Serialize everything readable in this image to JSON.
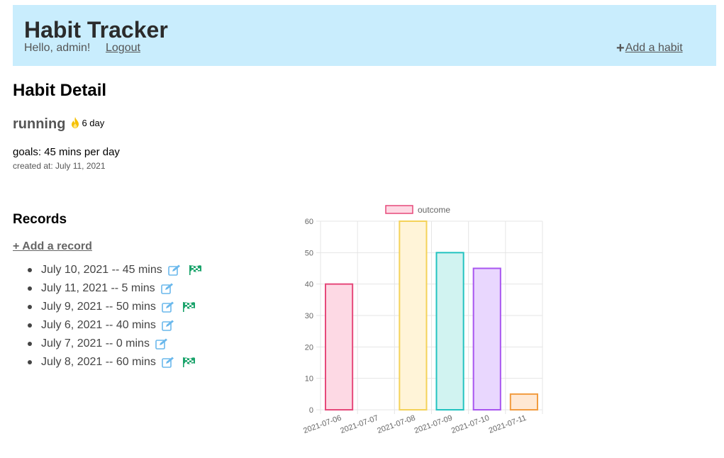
{
  "header": {
    "title": "Habit Tracker",
    "greeting": "Hello, admin!",
    "logout": "Logout",
    "add_habit": " Add a habit"
  },
  "page_title": "Habit Detail",
  "habit": {
    "name": "running",
    "streak": "6 day",
    "goals": "goals: 45 mins per day",
    "created": "created at: July 11, 2021"
  },
  "records": {
    "title": "Records",
    "add_record": "+ Add a record",
    "items": [
      {
        "text": "July 10, 2021 -- 45 mins",
        "goal_met": true
      },
      {
        "text": "July 11, 2021 -- 5 mins",
        "goal_met": false
      },
      {
        "text": "July 9, 2021 -- 50 mins",
        "goal_met": true
      },
      {
        "text": "July 6, 2021 -- 40 mins",
        "goal_met": false
      },
      {
        "text": "July 7, 2021 -- 0 mins",
        "goal_met": false
      },
      {
        "text": "July 8, 2021 -- 60 mins",
        "goal_met": true
      }
    ]
  },
  "icons": {
    "add": "plus-icon",
    "streak": "fire-icon",
    "edit": "edit-icon",
    "goal": "checkered-flag-icon"
  },
  "colors": {
    "header_bg": "#c9edfd",
    "edit_icon": "#6ab8ec",
    "flag_icon": "#1aa36b",
    "fire_icon": "#f5c000"
  },
  "chart_data": {
    "type": "bar",
    "legend": "outcome",
    "legend_position": "top",
    "categories": [
      "2021-07-06",
      "2021-07-07",
      "2021-07-08",
      "2021-07-09",
      "2021-07-10",
      "2021-07-11"
    ],
    "values": [
      40,
      0,
      60,
      50,
      45,
      5
    ],
    "ylim": [
      0,
      60
    ],
    "yticks": [
      0,
      10,
      20,
      30,
      40,
      50,
      60
    ],
    "grid": true,
    "fills": [
      "#fdd9e4",
      "#fdd9e4",
      "#fff4d8",
      "#d1f3f1",
      "#e9d7fe",
      "#ffe8d3"
    ],
    "borders": [
      "#e6497a",
      "#e6497a",
      "#f4d259",
      "#22c3c0",
      "#a855f0",
      "#f29b3e"
    ]
  }
}
